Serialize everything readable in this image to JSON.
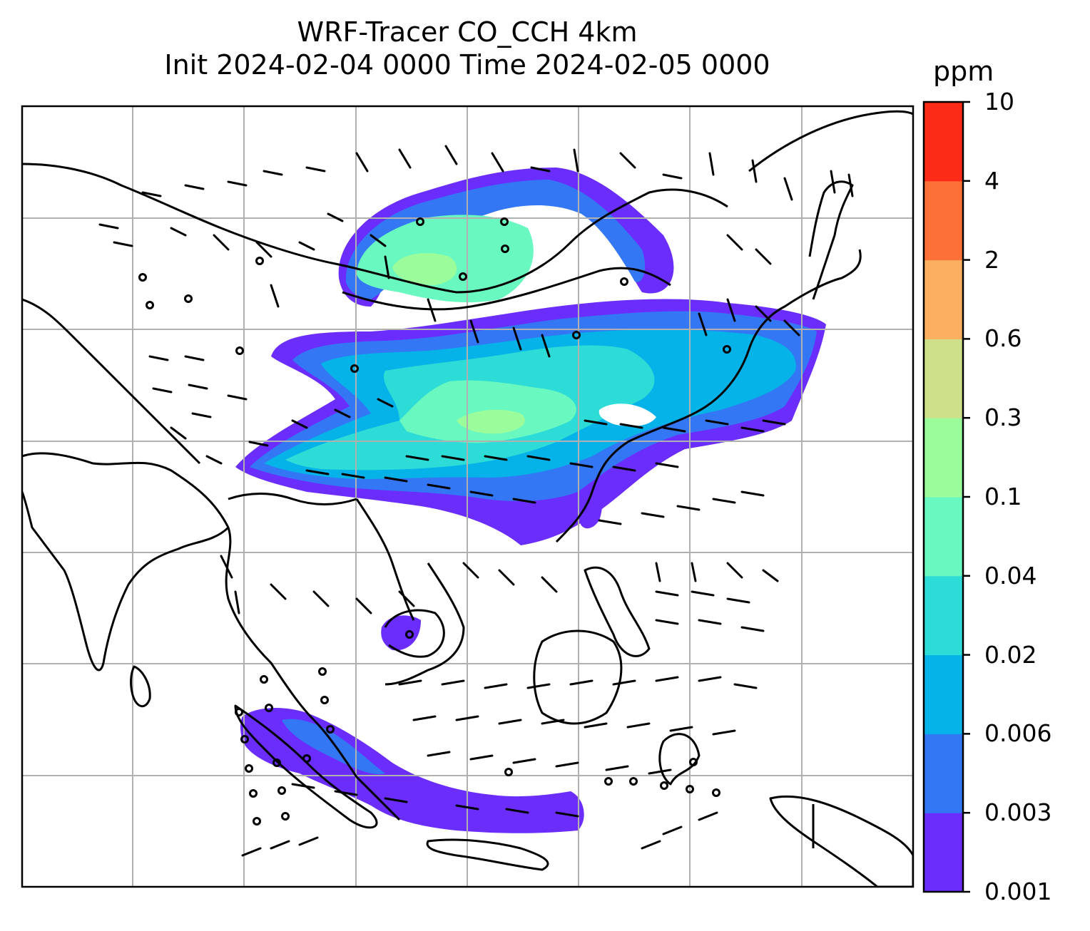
{
  "figure": {
    "title_line1": "WRF-Tracer CO_CCH 4km",
    "title_line2": "Init 2024-02-04 0000 Time 2024-02-05 0000"
  },
  "colorbar": {
    "unit": "ppm",
    "levels": [
      "0.001",
      "0.003",
      "0.006",
      "0.02",
      "0.04",
      "0.1",
      "0.3",
      "0.6",
      "2",
      "4",
      "10"
    ],
    "colors": [
      "#6b2dfb",
      "#3477f4",
      "#05b3e9",
      "#2ddcd6",
      "#6af8c1",
      "#9bfc9b",
      "#cfe08b",
      "#fcb05f",
      "#fd7139",
      "#fc2b17"
    ]
  },
  "map": {
    "gridlines": true,
    "layers": [
      "coastlines",
      "country-borders",
      "wind-barbs",
      "tracer-concentration"
    ],
    "background_color": "#ffffff"
  }
}
